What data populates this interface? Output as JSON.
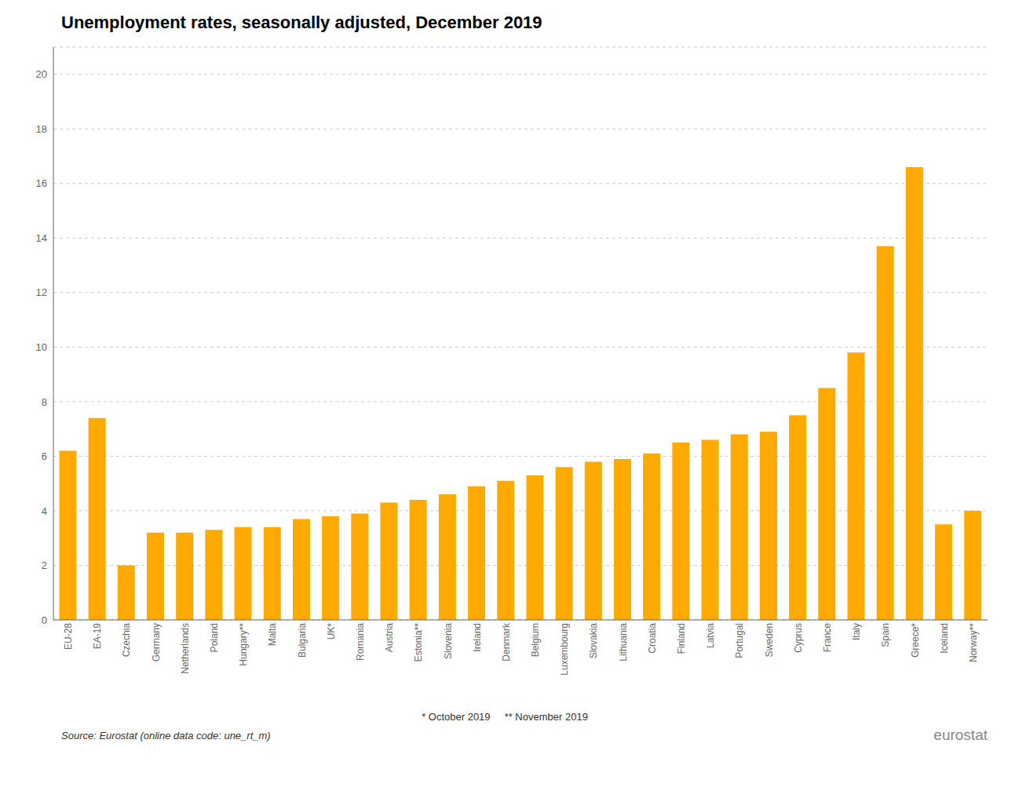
{
  "chart_data": {
    "type": "bar",
    "title": "Unemployment rates, seasonally adjusted, December 2019",
    "categories": [
      "EU-28",
      "EA-19",
      "Czechia",
      "Germany",
      "Netherlands",
      "Poland",
      "Hungary**",
      "Malta",
      "Bulgaria",
      "UK*",
      "Romania",
      "Austria",
      "Estonia**",
      "Slovenia",
      "Ireland",
      "Denmark",
      "Belgium",
      "Luxembourg",
      "Slovakia",
      "Lithuania",
      "Croatia",
      "Finland",
      "Latvia",
      "Portugal",
      "Sweden",
      "Cyprus",
      "France",
      "Italy",
      "Spain",
      "Greece*",
      "Iceland",
      "Norway**"
    ],
    "values": [
      6.2,
      7.4,
      2.0,
      3.2,
      3.2,
      3.3,
      3.4,
      3.4,
      3.7,
      3.8,
      3.9,
      4.3,
      4.4,
      4.6,
      4.9,
      5.1,
      5.3,
      5.6,
      5.8,
      5.9,
      6.1,
      6.5,
      6.6,
      6.8,
      6.9,
      7.5,
      8.5,
      9.8,
      13.7,
      16.6,
      3.5,
      4.0
    ],
    "color": "#FFAA00",
    "ylim": [
      0,
      21
    ],
    "yticks": [
      0,
      2,
      4,
      6,
      8,
      10,
      12,
      14,
      16,
      18,
      20
    ],
    "grid": true,
    "annotations": [
      "Source: Eurostat (online data code: une_rt_m)",
      "* October 2019     ** November 2019",
      "eurostat"
    ]
  }
}
